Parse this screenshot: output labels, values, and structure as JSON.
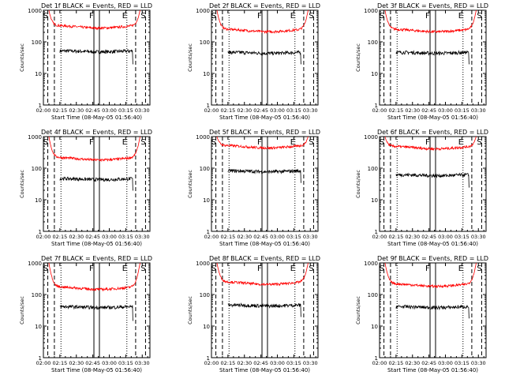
{
  "figure": {
    "background": "#ffffff"
  },
  "styles": {
    "event_color": "#000000",
    "lld_color": "#ff0000",
    "axis_color": "#000000"
  },
  "chart_data": [
    {
      "type": "line",
      "title": "Det 1f BLACK = Events, RED = LLD",
      "xlabel": "Start Time (08-May-05 01:56:40)",
      "ylabel": "Counts/sec",
      "y_scale": "log",
      "ylim": [
        1,
        1000
      ],
      "xlim": [
        "02:00",
        "03:37"
      ],
      "x_ticks": [
        "02:00",
        "02:15",
        "02:30",
        "02:45",
        "03:00",
        "03:15",
        "03:30"
      ],
      "y_ticks": [
        "1",
        "10",
        "100",
        "1000"
      ],
      "markers": [
        {
          "label": "S",
          "time": "02:04",
          "style": "dashed"
        },
        {
          "label": "",
          "time": "02:10",
          "style": "dashed"
        },
        {
          "label": "",
          "time": "02:16",
          "style": "dotted"
        },
        {
          "label": "F",
          "time": "02:46",
          "style": "solid"
        },
        {
          "label": "",
          "time": "02:51",
          "style": "solid"
        },
        {
          "label": "E",
          "time": "03:16",
          "style": "dotted"
        },
        {
          "label": "",
          "time": "03:24",
          "style": "dashed"
        },
        {
          "label": "S",
          "time": "03:33",
          "style": "dashed"
        }
      ],
      "series": [
        {
          "name": "BLACK = Events",
          "start": "02:15",
          "end": "03:22",
          "level": 50,
          "drop": 20
        },
        {
          "name": "RED = LLD",
          "start": "02:05",
          "end": "03:28",
          "level": 300,
          "peak": 1000
        }
      ]
    },
    {
      "type": "line",
      "title": "Det 2f BLACK = Events, RED = LLD",
      "xlabel": "Start Time (08-May-05 01:56:40)",
      "ylabel": "Counts/sec",
      "y_scale": "log",
      "ylim": [
        1,
        1000
      ],
      "xlim": [
        "02:00",
        "03:37"
      ],
      "x_ticks": [
        "02:00",
        "02:15",
        "02:30",
        "02:45",
        "03:00",
        "03:15",
        "03:30"
      ],
      "y_ticks": [
        "1",
        "10",
        "100",
        "1000"
      ],
      "markers": [
        {
          "label": "S",
          "time": "02:04",
          "style": "dashed"
        },
        {
          "label": "",
          "time": "02:10",
          "style": "dashed"
        },
        {
          "label": "",
          "time": "02:16",
          "style": "dotted"
        },
        {
          "label": "F",
          "time": "02:46",
          "style": "solid"
        },
        {
          "label": "",
          "time": "02:51",
          "style": "solid"
        },
        {
          "label": "E",
          "time": "03:16",
          "style": "dotted"
        },
        {
          "label": "",
          "time": "03:24",
          "style": "dashed"
        },
        {
          "label": "S",
          "time": "03:33",
          "style": "dashed"
        }
      ],
      "series": [
        {
          "name": "BLACK = Events",
          "start": "02:15",
          "end": "03:22",
          "level": 45,
          "drop": 20
        },
        {
          "name": "RED = LLD",
          "start": "02:05",
          "end": "03:28",
          "level": 230,
          "peak": 1000
        }
      ]
    },
    {
      "type": "line",
      "title": "Det 3f BLACK = Events, RED = LLD",
      "xlabel": "Start Time (08-May-05 01:56:40)",
      "ylabel": "Counts/sec",
      "y_scale": "log",
      "ylim": [
        1,
        1000
      ],
      "xlim": [
        "02:00",
        "03:37"
      ],
      "x_ticks": [
        "02:00",
        "02:15",
        "02:30",
        "02:45",
        "03:00",
        "03:15",
        "03:30"
      ],
      "y_ticks": [
        "1",
        "10",
        "100",
        "1000"
      ],
      "markers": [
        {
          "label": "S",
          "time": "02:04",
          "style": "dashed"
        },
        {
          "label": "",
          "time": "02:10",
          "style": "dashed"
        },
        {
          "label": "",
          "time": "02:16",
          "style": "dotted"
        },
        {
          "label": "F",
          "time": "02:46",
          "style": "solid"
        },
        {
          "label": "",
          "time": "02:51",
          "style": "solid"
        },
        {
          "label": "E",
          "time": "03:16",
          "style": "dotted"
        },
        {
          "label": "",
          "time": "03:24",
          "style": "dashed"
        },
        {
          "label": "S",
          "time": "03:33",
          "style": "dashed"
        }
      ],
      "series": [
        {
          "name": "BLACK = Events",
          "start": "02:15",
          "end": "03:22",
          "level": 45,
          "drop": 20
        },
        {
          "name": "RED = LLD",
          "start": "02:05",
          "end": "03:28",
          "level": 230,
          "peak": 1000
        }
      ]
    },
    {
      "type": "line",
      "title": "Det 4f BLACK = Events, RED = LLD",
      "xlabel": "Start Time (08-May-05 01:56:40)",
      "ylabel": "Counts/sec",
      "y_scale": "log",
      "ylim": [
        1,
        1000
      ],
      "xlim": [
        "02:00",
        "03:37"
      ],
      "x_ticks": [
        "02:00",
        "02:15",
        "02:30",
        "02:45",
        "03:00",
        "03:15",
        "03:30"
      ],
      "y_ticks": [
        "1",
        "10",
        "100",
        "1000"
      ],
      "markers": [
        {
          "label": "S",
          "time": "02:04",
          "style": "dashed"
        },
        {
          "label": "",
          "time": "02:10",
          "style": "dashed"
        },
        {
          "label": "",
          "time": "02:16",
          "style": "dotted"
        },
        {
          "label": "F",
          "time": "02:46",
          "style": "solid"
        },
        {
          "label": "",
          "time": "02:51",
          "style": "solid"
        },
        {
          "label": "E",
          "time": "03:16",
          "style": "dotted"
        },
        {
          "label": "",
          "time": "03:24",
          "style": "dashed"
        },
        {
          "label": "S",
          "time": "03:33",
          "style": "dashed"
        }
      ],
      "series": [
        {
          "name": "BLACK = Events",
          "start": "02:15",
          "end": "03:22",
          "level": 45,
          "drop": 20
        },
        {
          "name": "RED = LLD",
          "start": "02:05",
          "end": "03:28",
          "level": 200,
          "peak": 1000
        }
      ]
    },
    {
      "type": "line",
      "title": "Det 5f BLACK = Events, RED = LLD",
      "xlabel": "Start Time (08-May-05 01:56:40)",
      "ylabel": "Counts/sec",
      "y_scale": "log",
      "ylim": [
        1,
        1000
      ],
      "xlim": [
        "02:00",
        "03:37"
      ],
      "x_ticks": [
        "02:00",
        "02:15",
        "02:30",
        "02:45",
        "03:00",
        "03:15",
        "03:30"
      ],
      "y_ticks": [
        "1",
        "10",
        "100",
        "1000"
      ],
      "markers": [
        {
          "label": "S",
          "time": "02:04",
          "style": "dashed"
        },
        {
          "label": "",
          "time": "02:10",
          "style": "dashed"
        },
        {
          "label": "",
          "time": "02:16",
          "style": "dotted"
        },
        {
          "label": "F",
          "time": "02:46",
          "style": "solid"
        },
        {
          "label": "",
          "time": "02:51",
          "style": "solid"
        },
        {
          "label": "E",
          "time": "03:16",
          "style": "dotted"
        },
        {
          "label": "",
          "time": "03:24",
          "style": "dashed"
        },
        {
          "label": "S",
          "time": "03:33",
          "style": "dashed"
        }
      ],
      "series": [
        {
          "name": "BLACK = Events",
          "start": "02:15",
          "end": "03:22",
          "level": 80,
          "drop": 35
        },
        {
          "name": "RED = LLD",
          "start": "02:05",
          "end": "03:28",
          "level": 480,
          "peak": 1000
        }
      ]
    },
    {
      "type": "line",
      "title": "Det 6f BLACK = Events, RED = LLD",
      "xlabel": "Start Time (08-May-05 01:56:40)",
      "ylabel": "Counts/sec",
      "y_scale": "log",
      "ylim": [
        1,
        1000
      ],
      "xlim": [
        "02:00",
        "03:37"
      ],
      "x_ticks": [
        "02:00",
        "02:15",
        "02:30",
        "02:45",
        "03:00",
        "03:15",
        "03:30"
      ],
      "y_ticks": [
        "1",
        "10",
        "100",
        "1000"
      ],
      "markers": [
        {
          "label": "S",
          "time": "02:04",
          "style": "dashed"
        },
        {
          "label": "",
          "time": "02:10",
          "style": "dashed"
        },
        {
          "label": "",
          "time": "02:16",
          "style": "dotted"
        },
        {
          "label": "F",
          "time": "02:46",
          "style": "solid"
        },
        {
          "label": "",
          "time": "02:51",
          "style": "solid"
        },
        {
          "label": "E",
          "time": "03:16",
          "style": "dotted"
        },
        {
          "label": "",
          "time": "03:24",
          "style": "dashed"
        },
        {
          "label": "S",
          "time": "03:33",
          "style": "dashed"
        }
      ],
      "series": [
        {
          "name": "BLACK = Events",
          "start": "02:15",
          "end": "03:22",
          "level": 60,
          "drop": 25
        },
        {
          "name": "RED = LLD",
          "start": "02:05",
          "end": "03:28",
          "level": 450,
          "peak": 1000
        }
      ]
    },
    {
      "type": "line",
      "title": "Det 7f BLACK = Events, RED = LLD",
      "xlabel": "Start Time (08-May-05 01:56:40)",
      "ylabel": "Counts/sec",
      "y_scale": "log",
      "ylim": [
        1,
        1000
      ],
      "xlim": [
        "02:00",
        "03:37"
      ],
      "x_ticks": [
        "02:00",
        "02:15",
        "02:30",
        "02:45",
        "03:00",
        "03:15",
        "03:30"
      ],
      "y_ticks": [
        "1",
        "10",
        "100",
        "1000"
      ],
      "markers": [
        {
          "label": "S",
          "time": "02:04",
          "style": "dashed"
        },
        {
          "label": "",
          "time": "02:10",
          "style": "dashed"
        },
        {
          "label": "",
          "time": "02:16",
          "style": "dotted"
        },
        {
          "label": "F",
          "time": "02:46",
          "style": "solid"
        },
        {
          "label": "",
          "time": "02:51",
          "style": "solid"
        },
        {
          "label": "E",
          "time": "03:16",
          "style": "dotted"
        },
        {
          "label": "",
          "time": "03:24",
          "style": "dashed"
        },
        {
          "label": "S",
          "time": "03:33",
          "style": "dashed"
        }
      ],
      "series": [
        {
          "name": "BLACK = Events",
          "start": "02:15",
          "end": "03:22",
          "level": 40,
          "drop": 15
        },
        {
          "name": "RED = LLD",
          "start": "02:05",
          "end": "03:28",
          "level": 160,
          "peak": 1000
        }
      ]
    },
    {
      "type": "line",
      "title": "Det 8f BLACK = Events, RED = LLD",
      "xlabel": "Start Time (08-May-05 01:56:40)",
      "ylabel": "Counts/sec",
      "y_scale": "log",
      "ylim": [
        1,
        1000
      ],
      "xlim": [
        "02:00",
        "03:37"
      ],
      "x_ticks": [
        "02:00",
        "02:15",
        "02:30",
        "02:45",
        "03:00",
        "03:15",
        "03:30"
      ],
      "y_ticks": [
        "1",
        "10",
        "100",
        "1000"
      ],
      "markers": [
        {
          "label": "S",
          "time": "02:04",
          "style": "dashed"
        },
        {
          "label": "",
          "time": "02:10",
          "style": "dashed"
        },
        {
          "label": "",
          "time": "02:16",
          "style": "dotted"
        },
        {
          "label": "F",
          "time": "02:46",
          "style": "solid"
        },
        {
          "label": "",
          "time": "02:51",
          "style": "solid"
        },
        {
          "label": "E",
          "time": "03:16",
          "style": "dotted"
        },
        {
          "label": "",
          "time": "03:24",
          "style": "dashed"
        },
        {
          "label": "S",
          "time": "03:33",
          "style": "dashed"
        }
      ],
      "series": [
        {
          "name": "BLACK = Events",
          "start": "02:15",
          "end": "03:22",
          "level": 45,
          "drop": 20
        },
        {
          "name": "RED = LLD",
          "start": "02:05",
          "end": "03:28",
          "level": 230,
          "peak": 1000
        }
      ]
    },
    {
      "type": "line",
      "title": "Det 9f BLACK = Events, RED = LLD",
      "xlabel": "Start Time (08-May-05 01:56:40)",
      "ylabel": "Counts/sec",
      "y_scale": "log",
      "ylim": [
        1,
        1000
      ],
      "xlim": [
        "02:00",
        "03:37"
      ],
      "x_ticks": [
        "02:00",
        "02:15",
        "02:30",
        "02:45",
        "03:00",
        "03:15",
        "03:30"
      ],
      "y_ticks": [
        "1",
        "10",
        "100",
        "1000"
      ],
      "markers": [
        {
          "label": "S",
          "time": "02:04",
          "style": "dashed"
        },
        {
          "label": "",
          "time": "02:10",
          "style": "dashed"
        },
        {
          "label": "",
          "time": "02:16",
          "style": "dotted"
        },
        {
          "label": "F",
          "time": "02:46",
          "style": "solid"
        },
        {
          "label": "",
          "time": "02:51",
          "style": "solid"
        },
        {
          "label": "E",
          "time": "03:16",
          "style": "dotted"
        },
        {
          "label": "",
          "time": "03:24",
          "style": "dashed"
        },
        {
          "label": "S",
          "time": "03:33",
          "style": "dashed"
        }
      ],
      "series": [
        {
          "name": "BLACK = Events",
          "start": "02:15",
          "end": "03:22",
          "level": 40,
          "drop": 18
        },
        {
          "name": "RED = LLD",
          "start": "02:05",
          "end": "03:28",
          "level": 200,
          "peak": 1000
        }
      ]
    }
  ]
}
